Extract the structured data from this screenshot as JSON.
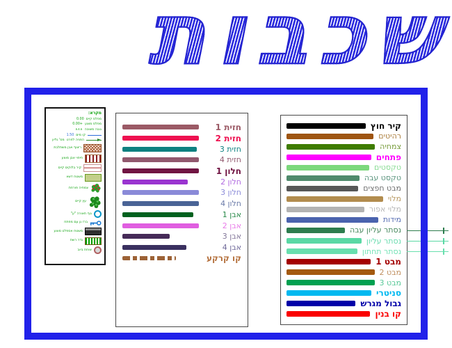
{
  "title": {
    "text": "שכבות"
  },
  "colors": {
    "frame": "#2121ea",
    "title_blue": "#2b2bdf",
    "legend_text": "#12a412"
  },
  "legend": {
    "header": "מקרא:",
    "items": [
      {
        "type": "pair",
        "label": "מפלס קיים",
        "value": "0.00"
      },
      {
        "type": "pair",
        "label": "מפלס מוצע",
        "value": "+0.00"
      },
      {
        "type": "pair",
        "label": "גובה משוכה",
        "value": "∧∧∧"
      },
      {
        "type": "blue-line",
        "label": "קו מים",
        "value": "1.50"
      },
      {
        "type": "leader-arrow",
        "label": "הפניה לפרט",
        "value": "מס' גליון"
      },
      {
        "type": "hatch-cross",
        "label": "ריצוף אבן משתלבת"
      },
      {
        "type": "hatch-vdash",
        "label": "חיפוי אבן מוצע"
      },
      {
        "type": "hatch-hline",
        "label": "קיר בלוקים קיים"
      },
      {
        "type": "fill-green",
        "label": "משטח דשא"
      },
      {
        "type": "plant-flower",
        "label": "צמחיה פורחת"
      },
      {
        "type": "plant-green",
        "label": "עץ קיים"
      },
      {
        "type": "ring-blue",
        "label": "גוף תאורה \"ע\""
      },
      {
        "type": "key",
        "label": "ברז גן עם מפתח"
      },
      {
        "type": "bar-dark",
        "label": "משטח אספלט מוצע"
      },
      {
        "type": "bar-stripes",
        "label": "גדר רשת"
      },
      {
        "type": "ring-small",
        "label": "שוחת ביוב"
      }
    ]
  },
  "middle_panel": {
    "rows": [
      {
        "label": "חזית 1",
        "color": "#9b5a66",
        "bold": true,
        "len": 1
      },
      {
        "label": "חזית 2",
        "color": "#ee1050",
        "bold": true,
        "len": 1
      },
      {
        "label": "חזית 3",
        "color": "#0e8080",
        "len": 0.97
      },
      {
        "label": "חזית 4",
        "color": "#91586e",
        "len": 1
      },
      {
        "label": "חלון 1",
        "color": "#701442",
        "bold": true,
        "len": 1
      },
      {
        "label": "חלון 2",
        "color": "#9a35d0",
        "label_color": "#b06ae0",
        "len": 0.85
      },
      {
        "label": "חלון 3",
        "color": "#8a8ad8",
        "len": 1
      },
      {
        "label": "חלון 4",
        "color": "#4a6496",
        "label_color": "#6a7aa8",
        "len": 1
      },
      {
        "label": "אבן 1",
        "color": "#00611e",
        "label_color": "#2a8a4a",
        "len": 0.93
      },
      {
        "label": "אבן 2",
        "color": "#e05ee0",
        "label_color": "#e87ae8",
        "len": 1
      },
      {
        "label": "אבן 3",
        "color": "#462a58",
        "label_color": "#84789a",
        "len": 0.62
      },
      {
        "label": "אבן 4",
        "color": "#3a3060",
        "label_color": "#706a9a",
        "len": 0.84
      },
      {
        "label": "קו קרקע",
        "color": "#9c6236",
        "label_color": "#b4703c",
        "bold": true,
        "dashed": true,
        "len": 0.7
      }
    ]
  },
  "right_panel": {
    "rows": [
      {
        "label": "קיר חוץ",
        "color": "#000000",
        "bold": true
      },
      {
        "label": "רהיטים",
        "color": "#9e5410",
        "label_color": "#ad8040"
      },
      {
        "label": "צמחיה",
        "color": "#3f7c00",
        "label_color": "#789c3c"
      },
      {
        "label": "פתחים",
        "color": "#ff00ff",
        "bold": true
      },
      {
        "label": "טקסטים",
        "color": "#7cd87c",
        "label_color": "#8cdc96"
      },
      {
        "label": "טקסט עבה",
        "color": "#4f8a6c",
        "label_color": "#5e9680"
      },
      {
        "label": "מבט חפצים",
        "color": "#575757",
        "label_color": "#6e6e6e"
      },
      {
        "label": "מלוי",
        "color": "#b28c4e",
        "label_color": "#b89a64"
      },
      {
        "label": "מלוי אפור",
        "color": "#b3b3b3",
        "label_color": "#b8b8b8"
      },
      {
        "label": "מידות",
        "color": "#4a63ae",
        "label_color": "#5a70b4"
      },
      {
        "label": "נסתר עליון עבה",
        "color": "#2d7d4e",
        "label_color": "#4a8a60",
        "leader": true
      },
      {
        "label": "נסתר עליון",
        "color": "#5ad8a4",
        "label_color": "#6cdcb0",
        "leader": true
      },
      {
        "label": "נסתר תחתון",
        "color": "#68dfae",
        "label_color": "#74e2b6",
        "leader": true
      },
      {
        "label": "מבט 1",
        "color": "#a40000",
        "bold": true
      },
      {
        "label": "מבט 2",
        "color": "#a45a10",
        "label_color": "#c09060"
      },
      {
        "label": "מבט 3",
        "color": "#00a050",
        "label_color": "#58c898"
      },
      {
        "label": "סניטרי",
        "color": "#00b8f0",
        "bold": true
      },
      {
        "label": "גבול מגרש",
        "color": "#0000a8",
        "bold": true
      },
      {
        "label": "קו בנין",
        "color": "#fa0000",
        "bold": true
      }
    ]
  }
}
